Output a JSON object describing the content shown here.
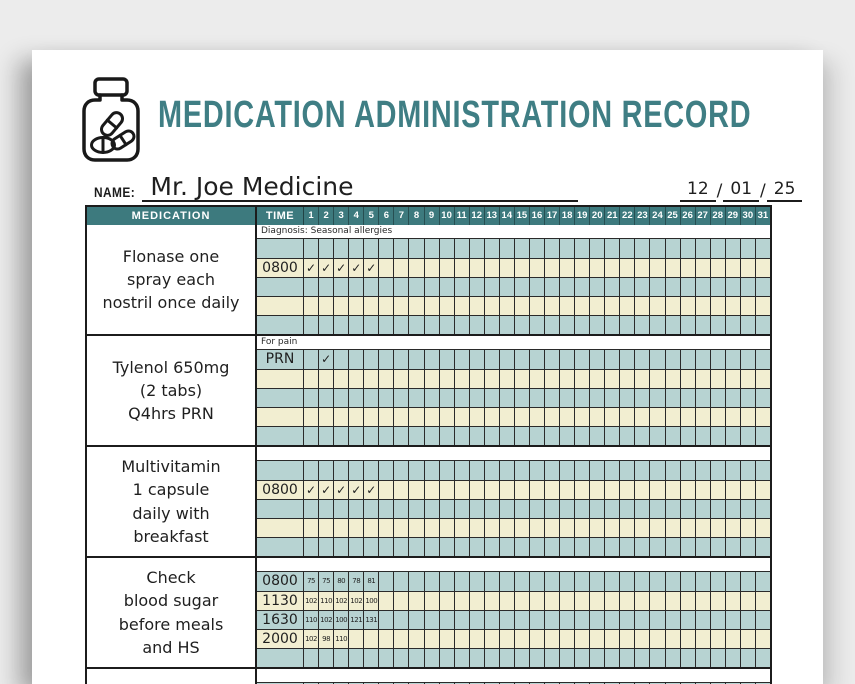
{
  "colors": {
    "title_teal": "#3f7e84",
    "header_teal": "#3d7a7e",
    "row_teal": "#b7d3d2",
    "row_cream": "#f2eed1",
    "paper": "#ffffff",
    "background": "#ececec",
    "ink": "#1f1f1f"
  },
  "header": {
    "title": "MEDICATION ADMINISTRATION RECORD",
    "icon": "pill-bottle-icon",
    "name_label": "NAME:",
    "name_value": "Mr. Joe Medicine",
    "date": {
      "month": "12",
      "day": "01",
      "year": "25"
    }
  },
  "table": {
    "medication_header": "MEDICATION",
    "time_header": "TIME",
    "day_headers": [
      "1",
      "2",
      "3",
      "4",
      "5",
      "6",
      "7",
      "8",
      "9",
      "10",
      "11",
      "12",
      "13",
      "14",
      "15",
      "16",
      "17",
      "18",
      "19",
      "20",
      "21",
      "22",
      "23",
      "24",
      "25",
      "26",
      "27",
      "28",
      "29",
      "30",
      "31"
    ],
    "blocks": [
      {
        "medication": "Flonase one\nspray each\nnostril once daily",
        "note": "Diagnosis: Seasonal allergies",
        "rows": [
          {
            "shade": "teal",
            "time": "",
            "cells": {}
          },
          {
            "shade": "cream",
            "time": "0800",
            "cells": {
              "1": "✓",
              "2": "✓",
              "3": "✓",
              "4": "✓",
              "5": "✓"
            }
          },
          {
            "shade": "teal",
            "time": "",
            "cells": {}
          },
          {
            "shade": "cream",
            "time": "",
            "cells": {}
          },
          {
            "shade": "teal",
            "time": "",
            "cells": {}
          }
        ]
      },
      {
        "medication": "Tylenol 650mg\n(2 tabs)\nQ4hrs PRN",
        "note": "For pain",
        "rows": [
          {
            "shade": "teal",
            "time": "PRN",
            "cells": {
              "2": "✓"
            }
          },
          {
            "shade": "cream",
            "time": "",
            "cells": {}
          },
          {
            "shade": "teal",
            "time": "",
            "cells": {}
          },
          {
            "shade": "cream",
            "time": "",
            "cells": {}
          },
          {
            "shade": "teal",
            "time": "",
            "cells": {}
          }
        ]
      },
      {
        "medication": "Multivitamin\n1 capsule\ndaily with\nbreakfast",
        "note": "",
        "rows": [
          {
            "shade": "teal",
            "time": "",
            "cells": {}
          },
          {
            "shade": "cream",
            "time": "0800",
            "cells": {
              "1": "✓",
              "2": "✓",
              "3": "✓",
              "4": "✓",
              "5": "✓"
            }
          },
          {
            "shade": "teal",
            "time": "",
            "cells": {}
          },
          {
            "shade": "cream",
            "time": "",
            "cells": {}
          },
          {
            "shade": "teal",
            "time": "",
            "cells": {}
          }
        ]
      },
      {
        "medication": "Check\nblood sugar\nbefore meals\nand HS",
        "note": "",
        "rows": [
          {
            "shade": "teal",
            "time": "0800",
            "cells": {
              "1": "75",
              "2": "75",
              "3": "80",
              "4": "78",
              "5": "81"
            }
          },
          {
            "shade": "cream",
            "time": "1130",
            "cells": {
              "1": "102",
              "2": "110",
              "3": "102",
              "4": "102",
              "5": "100"
            }
          },
          {
            "shade": "teal",
            "time": "1630",
            "cells": {
              "1": "110",
              "2": "102",
              "3": "100",
              "4": "121",
              "5": "131"
            }
          },
          {
            "shade": "cream",
            "time": "2000",
            "cells": {
              "1": "102",
              "2": "98",
              "3": "110"
            }
          },
          {
            "shade": "teal",
            "time": "",
            "cells": {}
          }
        ]
      },
      {
        "medication": "",
        "note": "",
        "rows": [
          {
            "shade": "teal",
            "time": "",
            "cells": {}
          }
        ]
      }
    ]
  }
}
